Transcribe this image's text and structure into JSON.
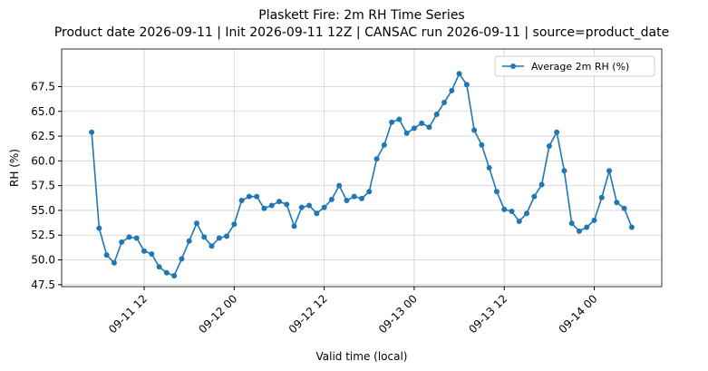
{
  "chart_data": {
    "type": "line",
    "title": "Plaskett Fire: 2m RH Time Series",
    "subtitle": "Product date 2026-09-11 | Init 2026-09-11 12Z | CANSAC run 2026-09-11 | source=product_date",
    "x_label": "Valid time (local)",
    "y_label": "RH (%)",
    "x": [
      "09-11 05",
      "09-11 06",
      "09-11 07",
      "09-11 08",
      "09-11 09",
      "09-11 10",
      "09-11 11",
      "09-11 12",
      "09-11 13",
      "09-11 14",
      "09-11 15",
      "09-11 16",
      "09-11 17",
      "09-11 18",
      "09-11 19",
      "09-11 20",
      "09-11 21",
      "09-11 22",
      "09-11 23",
      "09-12 00",
      "09-12 01",
      "09-12 02",
      "09-12 03",
      "09-12 04",
      "09-12 05",
      "09-12 06",
      "09-12 07",
      "09-12 08",
      "09-12 09",
      "09-12 10",
      "09-12 11",
      "09-12 12",
      "09-12 13",
      "09-12 14",
      "09-12 15",
      "09-12 16",
      "09-12 17",
      "09-12 18",
      "09-12 19",
      "09-12 20",
      "09-12 21",
      "09-12 22",
      "09-12 23",
      "09-13 00",
      "09-13 01",
      "09-13 02",
      "09-13 03",
      "09-13 04",
      "09-13 05",
      "09-13 06",
      "09-13 07",
      "09-13 08",
      "09-13 09",
      "09-13 10",
      "09-13 11",
      "09-13 12",
      "09-13 13",
      "09-13 14",
      "09-13 15",
      "09-13 16",
      "09-13 17",
      "09-13 18",
      "09-13 19",
      "09-13 20",
      "09-13 21",
      "09-13 22",
      "09-13 23",
      "09-14 00",
      "09-14 01",
      "09-14 02",
      "09-14 03",
      "09-14 04",
      "09-14 05"
    ],
    "series": [
      {
        "name": "Average 2m RH (%)",
        "color": "#1f77b4",
        "values": [
          62.9,
          53.2,
          50.5,
          49.7,
          51.8,
          52.3,
          52.2,
          50.9,
          50.6,
          49.3,
          48.7,
          48.4,
          50.1,
          51.9,
          53.7,
          52.3,
          51.4,
          52.2,
          52.4,
          53.6,
          56.0,
          56.4,
          56.4,
          55.2,
          55.5,
          55.9,
          55.6,
          53.4,
          55.3,
          55.5,
          54.7,
          55.3,
          56.1,
          57.5,
          56.0,
          56.4,
          56.2,
          56.9,
          60.2,
          61.6,
          63.9,
          64.2,
          62.8,
          63.3,
          63.8,
          63.4,
          64.7,
          65.9,
          67.1,
          68.8,
          67.7,
          63.1,
          61.6,
          59.3,
          56.9,
          55.1,
          54.9,
          53.9,
          54.7,
          56.4,
          57.6,
          61.5,
          62.9,
          59.0,
          53.7,
          52.9,
          53.3,
          54.0,
          56.3,
          59.0,
          55.8,
          55.2,
          53.3
        ]
      }
    ],
    "xlim": [
      "09-11 01",
      "09-14 09"
    ],
    "xticks": [
      "09-11 12",
      "09-12 00",
      "09-12 12",
      "09-13 00",
      "09-13 12",
      "09-14 00"
    ],
    "ylim": [
      47.3,
      71.3
    ],
    "yticks": [
      47.5,
      {
        "value": 50,
        "label": "50.0"
      },
      52.5,
      {
        "value": 55,
        "label": "55.0"
      },
      57.5,
      {
        "value": 60,
        "label": "60.0"
      },
      62.5,
      {
        "value": 65,
        "label": "65.0"
      },
      67.5
    ],
    "grid": true,
    "legend": "upper right"
  }
}
